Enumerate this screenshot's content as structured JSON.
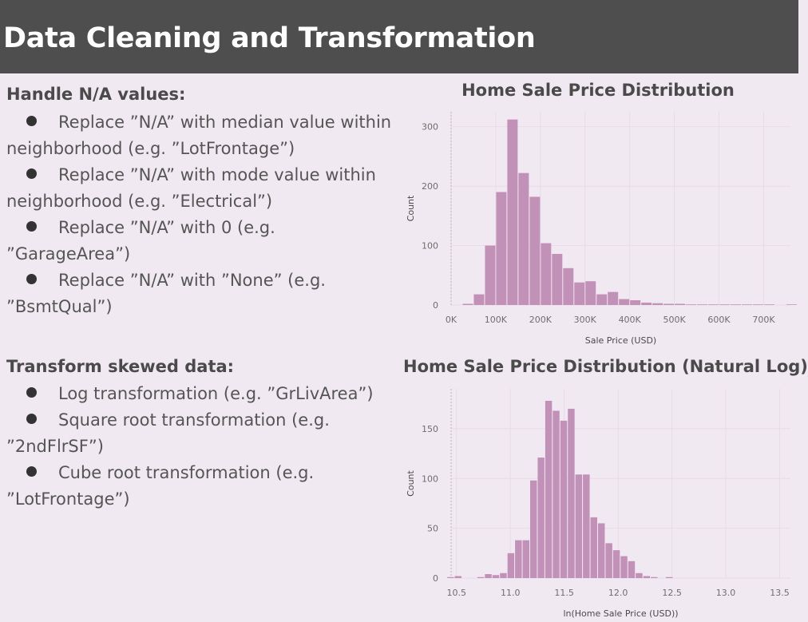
{
  "header": {
    "title": "Data Cleaning and Transformation"
  },
  "na_section": {
    "heading": "Handle N/A values:",
    "items": [
      "Replace ”N/A” with median  value within neighborhood (e.g. ”LotFrontage”)",
      "Replace ”N/A” with mode value within neighborhood (e.g. ”Electrical”)",
      "Replace ”N/A” with 0 (e.g. ”GarageArea”)",
      "Replace ”N/A” with ”None” (e.g. ”BsmtQual”)"
    ]
  },
  "skew_section": {
    "heading": "Transform skewed data:",
    "items": [
      "Log transformation (e.g. ”GrLivArea”)",
      "Square root transformation (e.g. ”2ndFlrSF”)",
      "Cube root transformation (e.g. ”LotFrontage”)"
    ]
  },
  "colors": {
    "bar": "#c291b7",
    "grid": "#e8dce6",
    "header_bg": "#4e4e4e",
    "page_bg": "#f1e9f1"
  },
  "chart_data": [
    {
      "type": "bar",
      "title": "Home Sale Price Distribution",
      "xlabel": "Sale Price (USD)",
      "ylabel": "Count",
      "xlim": [
        0,
        760000
      ],
      "ylim": [
        0,
        325
      ],
      "bin_width": 25000,
      "bin_start": 25000,
      "x_ticks": [
        0,
        100000,
        200000,
        300000,
        400000,
        500000,
        600000,
        700000
      ],
      "x_tick_labels": [
        "0K",
        "100K",
        "200K",
        "300K",
        "400K",
        "500K",
        "600K",
        "700K"
      ],
      "y_ticks": [
        0,
        100,
        200,
        300
      ],
      "values": [
        2,
        18,
        100,
        190,
        312,
        222,
        182,
        104,
        86,
        62,
        38,
        40,
        18,
        22,
        10,
        8,
        4,
        3,
        2,
        2,
        1,
        1,
        1,
        1,
        1,
        1,
        1,
        1,
        0,
        1
      ]
    },
    {
      "type": "bar",
      "title": "Home Sale Price Distribution (Natural Log)",
      "xlabel": "ln(Home Sale Price (USD))",
      "ylabel": "Count",
      "xlim": [
        10.45,
        13.6
      ],
      "ylim": [
        0,
        190
      ],
      "bin_width": 0.07,
      "bin_start": 10.41,
      "x_ticks": [
        10.5,
        11.0,
        11.5,
        12.0,
        12.5,
        13.0,
        13.5
      ],
      "x_tick_labels": [
        "10.5",
        "11.0",
        "11.5",
        "12.0",
        "12.5",
        "13.0",
        "13.5"
      ],
      "y_ticks": [
        0,
        50,
        100,
        150
      ],
      "values": [
        1,
        2,
        0,
        0,
        1,
        4,
        3,
        5,
        25,
        38,
        38,
        98,
        121,
        178,
        168,
        158,
        170,
        104,
        104,
        61,
        55,
        35,
        28,
        22,
        17,
        5,
        2,
        1,
        0,
        1
      ]
    }
  ]
}
